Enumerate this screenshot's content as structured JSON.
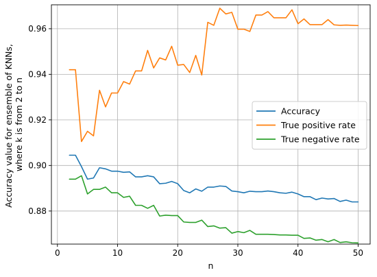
{
  "chart_data": {
    "type": "line",
    "title": "",
    "xlabel": "n",
    "ylabel_lines": [
      "Accuracy value for ensemble of KNNs,",
      "where k is from 2 to n"
    ],
    "xlim": [
      -1,
      52
    ],
    "ylim": [
      0.8655,
      0.9705
    ],
    "xticks": [
      0,
      10,
      20,
      30,
      40,
      50
    ],
    "yticks": [
      0.88,
      0.9,
      0.92,
      0.94,
      0.96
    ],
    "ytick_labels": [
      "0.88",
      "0.90",
      "0.92",
      "0.94",
      "0.96"
    ],
    "grid": true,
    "legend_position": "center-right",
    "x": [
      2,
      3,
      4,
      5,
      6,
      7,
      8,
      9,
      10,
      11,
      12,
      13,
      14,
      15,
      16,
      17,
      18,
      19,
      20,
      21,
      22,
      23,
      24,
      25,
      26,
      27,
      28,
      29,
      30,
      31,
      32,
      33,
      34,
      35,
      36,
      37,
      38,
      39,
      40,
      41,
      42,
      43,
      44,
      45,
      46,
      47,
      48,
      49,
      50
    ],
    "series": [
      {
        "name": "Accuracy",
        "color": "#1f77b4",
        "values": [
          0.9045,
          0.9045,
          0.8995,
          0.894,
          0.8945,
          0.899,
          0.8985,
          0.8975,
          0.8975,
          0.897,
          0.8972,
          0.895,
          0.895,
          0.8955,
          0.895,
          0.892,
          0.8922,
          0.893,
          0.892,
          0.889,
          0.888,
          0.8897,
          0.8887,
          0.8905,
          0.8905,
          0.891,
          0.8908,
          0.8888,
          0.8885,
          0.888,
          0.8887,
          0.8885,
          0.8885,
          0.8888,
          0.8885,
          0.888,
          0.8878,
          0.8883,
          0.8875,
          0.8863,
          0.8863,
          0.885,
          0.8857,
          0.8853,
          0.8855,
          0.8842,
          0.8848,
          0.884,
          0.884
        ]
      },
      {
        "name": "True positive rate",
        "color": "#ff7f0e",
        "values": [
          0.942,
          0.942,
          0.9105,
          0.915,
          0.913,
          0.933,
          0.9257,
          0.9318,
          0.9318,
          0.9368,
          0.9357,
          0.9415,
          0.9415,
          0.9505,
          0.9428,
          0.9472,
          0.9463,
          0.9523,
          0.944,
          0.9443,
          0.9408,
          0.9483,
          0.9397,
          0.9628,
          0.9615,
          0.969,
          0.9665,
          0.9672,
          0.9598,
          0.9598,
          0.9588,
          0.966,
          0.966,
          0.9675,
          0.9648,
          0.9648,
          0.9648,
          0.9683,
          0.9622,
          0.9643,
          0.9618,
          0.9618,
          0.9618,
          0.964,
          0.9617,
          0.9615,
          0.9616,
          0.9615,
          0.9614
        ]
      },
      {
        "name": "True negative rate",
        "color": "#2ca02c",
        "values": [
          0.894,
          0.894,
          0.8955,
          0.8875,
          0.8895,
          0.8895,
          0.8905,
          0.888,
          0.888,
          0.886,
          0.8865,
          0.8825,
          0.8825,
          0.8812,
          0.8825,
          0.8778,
          0.8782,
          0.878,
          0.878,
          0.8752,
          0.875,
          0.875,
          0.876,
          0.8732,
          0.8735,
          0.8725,
          0.8727,
          0.8703,
          0.871,
          0.8705,
          0.8715,
          0.8698,
          0.8698,
          0.8698,
          0.8697,
          0.8695,
          0.8695,
          0.8694,
          0.8694,
          0.868,
          0.8682,
          0.8672,
          0.8675,
          0.8665,
          0.8675,
          0.8662,
          0.8665,
          0.8661,
          0.866
        ]
      }
    ]
  }
}
